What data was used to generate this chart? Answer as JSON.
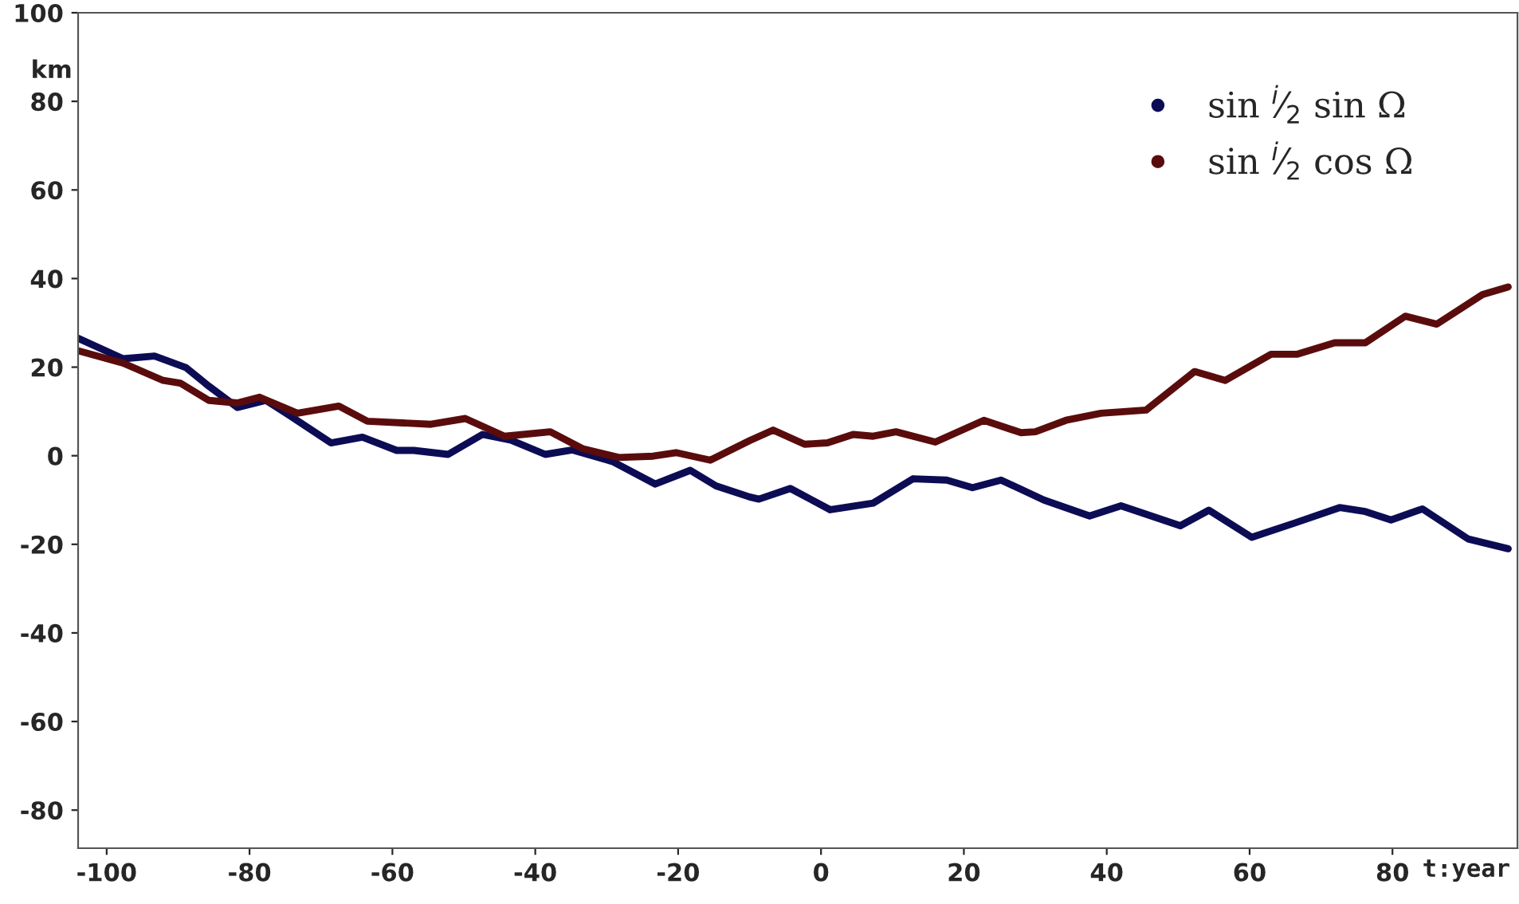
{
  "chart_data": {
    "type": "line",
    "xlabel": "t:year",
    "ylabel": "km",
    "xlim": [
      -104,
      97.5
    ],
    "ylim": [
      -88.6,
      100
    ],
    "xticks": [
      -100,
      -80,
      -60,
      -40,
      -20,
      0,
      20,
      40,
      60,
      80
    ],
    "yticks": [
      -80,
      -60,
      -40,
      -20,
      0,
      20,
      40,
      60,
      80,
      100
    ],
    "grid": false,
    "legend": "top right",
    "marker": "none",
    "line_style": "solid",
    "series": [
      {
        "name": "sin $^{i}$⁄$_{2}$ sin Ω",
        "color": "#0c0c55",
        "x": [
          -104,
          -97.7,
          -93.3,
          -88.9,
          -85.7,
          -81.7,
          -77.7,
          -74.6,
          -68.6,
          -64.2,
          -59.4,
          -57,
          -52.2,
          -47.4,
          -43.4,
          -38.6,
          -34.8,
          -29.2,
          -23.2,
          -18.3,
          -14.7,
          -10,
          -8.7,
          -4.3,
          1.3,
          7.3,
          12.9,
          17.6,
          21.2,
          25.2,
          31.2,
          37.6,
          42,
          50.3,
          54.3,
          60.3,
          66.3,
          72.6,
          76.2,
          79.8,
          84.2,
          90.6,
          96.2
        ],
        "values": [
          26.5,
          21.9,
          22.5,
          19.9,
          15.7,
          10.9,
          12.5,
          9.3,
          2.9,
          4.2,
          1.2,
          1.2,
          0.3,
          4.8,
          3.5,
          0.3,
          1.3,
          -1.3,
          -6.4,
          -3.3,
          -6.8,
          -9.3,
          -9.8,
          -7.4,
          -12.2,
          -10.7,
          -5.2,
          -5.5,
          -7.2,
          -5.5,
          -10,
          -13.6,
          -11.3,
          -15.8,
          -12.3,
          -18.4,
          -15.2,
          -11.7,
          -12.6,
          -14.5,
          -12,
          -18.8,
          -21
        ]
      },
      {
        "name": "sin $^{i}$⁄$_{2}$ cos Ω",
        "color": "#5a0c0c",
        "x": [
          -104,
          -97.7,
          -92.1,
          -89.7,
          -85.7,
          -81.7,
          -78.6,
          -73.3,
          -67.5,
          -63.5,
          -54.6,
          -49.8,
          -44.3,
          -37.9,
          -33.4,
          -28.3,
          -23.5,
          -20.3,
          -15.5,
          -10,
          -6.7,
          -2.3,
          0.9,
          4.5,
          7.3,
          10.5,
          16,
          22.8,
          28,
          30,
          34.3,
          39.2,
          45.5,
          52.3,
          56.6,
          63,
          66.6,
          71.9,
          76.2,
          81.8,
          86.2,
          92.6,
          96.2
        ],
        "values": [
          23.7,
          20.9,
          17,
          16.4,
          12.5,
          11.9,
          13.2,
          9.6,
          11.2,
          7.8,
          7.1,
          8.4,
          4.4,
          5.4,
          1.6,
          -0.4,
          -0.1,
          0.7,
          -1,
          3.4,
          5.8,
          2.6,
          2.9,
          4.8,
          4.4,
          5.4,
          3.1,
          8,
          5.2,
          5.4,
          8,
          9.6,
          10.3,
          19,
          17,
          22.9,
          22.9,
          25.5,
          25.5,
          31.5,
          29.7,
          36.4,
          38.1
        ]
      }
    ]
  }
}
